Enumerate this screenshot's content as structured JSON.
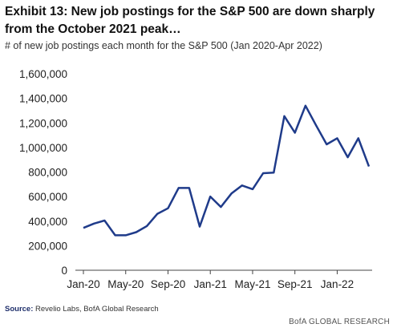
{
  "title": "Exhibit 13: New job postings for the S&P 500 are down sharply from the October 2021 peak…",
  "subtitle": "# of new job postings each month for the S&P 500 (Jan 2020-Apr 2022)",
  "source_label": "Source:",
  "source_text": "Revelio Labs, BofA Global Research",
  "brand": "BofA GLOBAL RESEARCH",
  "colors": {
    "line": "#1f3b8a",
    "axis": "#444444"
  },
  "chart_data": {
    "type": "line",
    "title": "",
    "xlabel": "",
    "ylabel": "",
    "ylim": [
      0,
      1600000
    ],
    "grid": false,
    "y_ticks": [
      0,
      200000,
      400000,
      600000,
      800000,
      1000000,
      1200000,
      1400000,
      1600000
    ],
    "y_tick_labels": [
      "0",
      "200,000",
      "400,000",
      "600,000",
      "800,000",
      "1,000,000",
      "1,200,000",
      "1,400,000",
      "1,600,000"
    ],
    "x_tick_labels": [
      "Jan-20",
      "May-20",
      "Sep-20",
      "Jan-21",
      "May-21",
      "Sep-21",
      "Jan-22"
    ],
    "x_tick_positions": [
      "Jan-20",
      "May-20",
      "Sep-20",
      "Jan-21",
      "May-21",
      "Sep-21",
      "Jan-22"
    ],
    "categories": [
      "Jan-20",
      "Feb-20",
      "Mar-20",
      "Apr-20",
      "May-20",
      "Jun-20",
      "Jul-20",
      "Aug-20",
      "Sep-20",
      "Oct-20",
      "Nov-20",
      "Dec-20",
      "Jan-21",
      "Feb-21",
      "Mar-21",
      "Apr-21",
      "May-21",
      "Jun-21",
      "Jul-21",
      "Aug-21",
      "Sep-21",
      "Oct-21",
      "Nov-21",
      "Dec-21",
      "Jan-22",
      "Feb-22",
      "Mar-22",
      "Apr-22"
    ],
    "series": [
      {
        "values": [
          345000,
          380000,
          405000,
          285000,
          285000,
          310000,
          360000,
          460000,
          505000,
          670000,
          670000,
          355000,
          600000,
          515000,
          625000,
          690000,
          660000,
          790000,
          795000,
          1255000,
          1120000,
          1340000,
          1180000,
          1025000,
          1075000,
          920000,
          1075000,
          845000
        ]
      }
    ]
  }
}
